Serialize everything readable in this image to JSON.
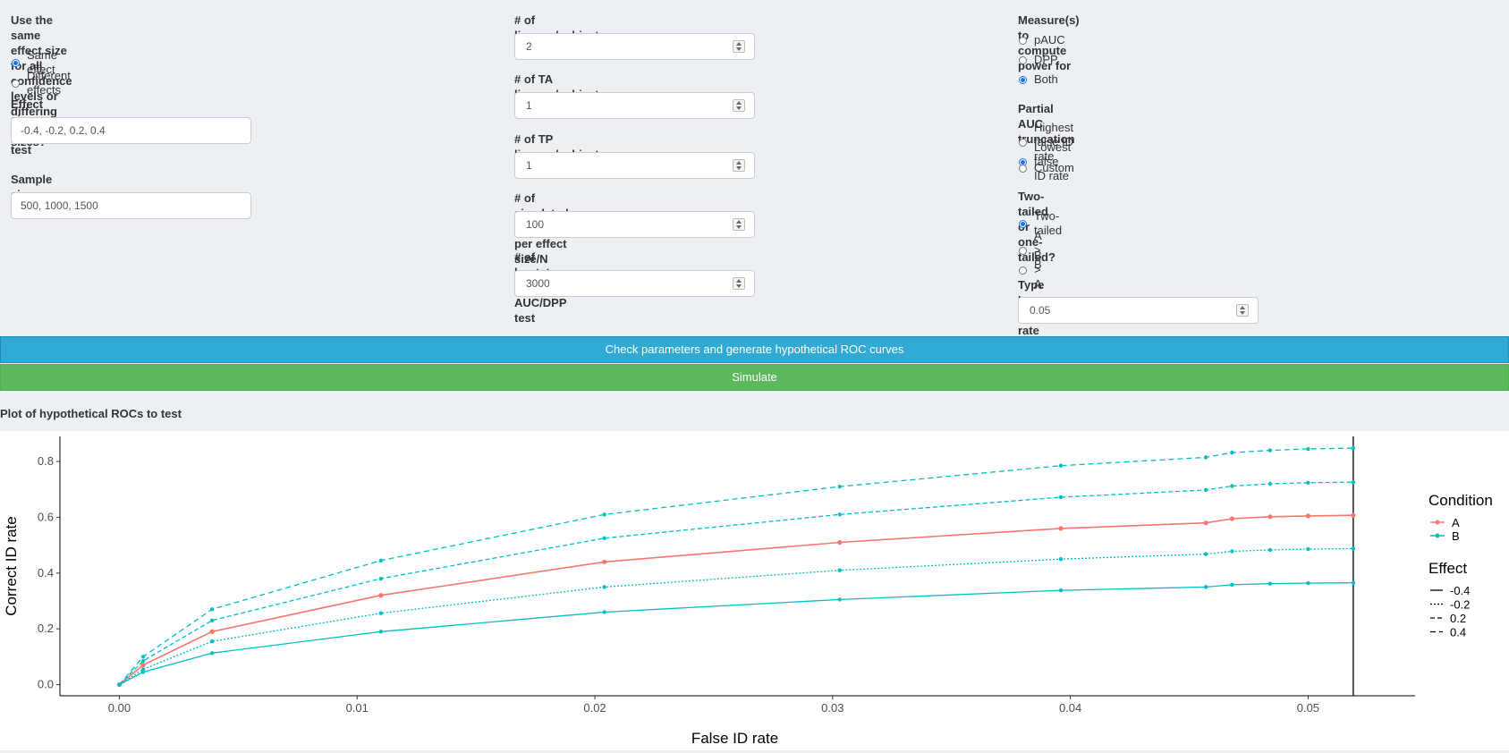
{
  "col1": {
    "effect_mode_label": "Use the same effect size for all confidence levels or differing effect sizes?",
    "effect_mode_line1": "Use the same effect size for all confidence",
    "effect_mode_line2": "levels or differing effect sizes?",
    "effect_mode_options": [
      {
        "label": "Same effect",
        "selected": true
      },
      {
        "label": "Different effects",
        "selected": false
      }
    ],
    "effect_sizes_label": "Effect sizes to test",
    "effect_sizes_value": "-0.4, -0.2, 0.2, 0.4",
    "sample_sizes_label": "Sample sizes to test",
    "sample_sizes_value": "500, 1000, 1500"
  },
  "col2": {
    "fields": [
      {
        "label": "# of lineups/subject",
        "value": "2"
      },
      {
        "label": "# of TA lineups/subject",
        "value": "1"
      },
      {
        "label": "# of TP lineups/subject",
        "value": "1"
      },
      {
        "label": "# of simulated samples per effect size/N",
        "value": "100"
      },
      {
        "label": "# of bootstraps per AUC/DPP test",
        "value": "3000"
      }
    ]
  },
  "col3": {
    "measure_label": "Measure(s) to compute power for",
    "measure_options": [
      {
        "label": "pAUC",
        "selected": false
      },
      {
        "label": "DPP",
        "selected": false
      },
      {
        "label": "Both",
        "selected": true
      }
    ],
    "trunc_label": "Partial AUC truncation",
    "trunc_options": [
      {
        "label": "Highest false ID rate",
        "selected": false
      },
      {
        "label": "Lowest false ID rate",
        "selected": true
      },
      {
        "label": "Custom",
        "selected": false
      }
    ],
    "tail_label": "Two-tailed or one-tailed?",
    "tail_options": [
      {
        "label": "Two-tailed",
        "selected": true
      },
      {
        "label": "A > B",
        "selected": false
      },
      {
        "label": "B > A",
        "selected": false
      }
    ],
    "alpha_label": "Type I error rate",
    "alpha_value": "0.05"
  },
  "buttons": {
    "roc_label": "Check parameters and generate hypothetical ROC curves",
    "simulate_label": "Simulate"
  },
  "plot_title": "Plot of hypothetical ROCs to test",
  "colors": {
    "A": "#f8766d",
    "B": "#00bfc4",
    "btn_roc": "#30a9d4",
    "btn_sim": "#5cb85c"
  },
  "chart_data": {
    "type": "line",
    "xlabel": "False ID rate",
    "ylabel": "Correct ID rate",
    "xlim": [
      -0.0025,
      0.0545
    ],
    "ylim": [
      -0.04,
      0.89
    ],
    "x_ticks": [
      "0.00",
      "0.01",
      "0.02",
      "0.03",
      "0.04",
      "0.05"
    ],
    "x_tick_values": [
      0.0,
      0.01,
      0.02,
      0.03,
      0.04,
      0.05
    ],
    "y_ticks": [
      "0.0",
      "0.2",
      "0.4",
      "0.6",
      "0.8"
    ],
    "y_tick_values": [
      0.0,
      0.2,
      0.4,
      0.6,
      0.8
    ],
    "vline_x": 0.0519,
    "x": [
      0.0,
      0.001,
      0.0039,
      0.011,
      0.0204,
      0.0303,
      0.0396,
      0.0457,
      0.0468,
      0.0484,
      0.05,
      0.0519
    ],
    "series": [
      {
        "condition": "A",
        "effect": "-0.4",
        "values": [
          0.0,
          0.07,
          0.19,
          0.32,
          0.44,
          0.51,
          0.56,
          0.58,
          0.595,
          0.602,
          0.605,
          0.607
        ]
      },
      {
        "condition": "B",
        "effect": "-0.4",
        "values": [
          0.0,
          0.045,
          0.113,
          0.19,
          0.26,
          0.305,
          0.338,
          0.35,
          0.358,
          0.362,
          0.364,
          0.365
        ]
      },
      {
        "condition": "B",
        "effect": "-0.2",
        "values": [
          0.0,
          0.055,
          0.155,
          0.256,
          0.35,
          0.41,
          0.45,
          0.468,
          0.478,
          0.483,
          0.486,
          0.488
        ]
      },
      {
        "condition": "B",
        "effect": "0.2",
        "values": [
          0.0,
          0.085,
          0.23,
          0.38,
          0.525,
          0.61,
          0.672,
          0.698,
          0.712,
          0.72,
          0.724,
          0.726
        ]
      },
      {
        "condition": "B",
        "effect": "0.4",
        "values": [
          0.0,
          0.1,
          0.27,
          0.445,
          0.61,
          0.71,
          0.785,
          0.815,
          0.832,
          0.84,
          0.845,
          0.848
        ]
      }
    ],
    "legend": {
      "condition_title": "Condition",
      "conditions": [
        "A",
        "B"
      ],
      "effect_title": "Effect",
      "effects": [
        "-0.4",
        "-0.2",
        "0.2",
        "0.4"
      ],
      "position": "right"
    }
  }
}
